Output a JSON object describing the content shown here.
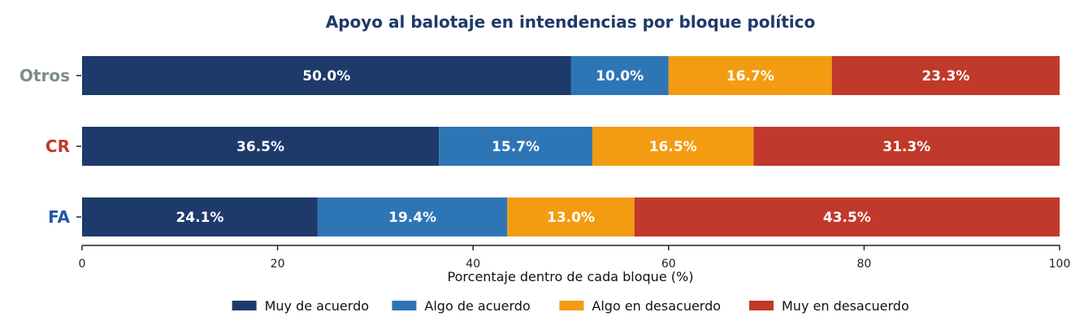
{
  "chart_data": {
    "type": "bar",
    "orientation": "horizontal",
    "stacked": true,
    "title": "Apoyo al balotaje en intendencias por bloque político",
    "xlabel": "Porcentaje dentro de cada bloque (%)",
    "ylabel": "",
    "xlim": [
      0,
      100
    ],
    "xticks": [
      0,
      20,
      40,
      60,
      80,
      100
    ],
    "grid": false,
    "legend_position": "bottom-center",
    "categories": [
      "Otros",
      "CR",
      "FA"
    ],
    "category_colors": {
      "Otros": "#7f8c8d",
      "CR": "#c0392b",
      "FA": "#1f57a8"
    },
    "series": [
      {
        "name": "Muy de acuerdo",
        "color": "#1e3a6b",
        "values": [
          50.0,
          36.5,
          24.1
        ],
        "labels": [
          "50.0%",
          "36.5%",
          "24.1%"
        ]
      },
      {
        "name": "Algo de acuerdo",
        "color": "#2e75b6",
        "values": [
          10.0,
          15.7,
          19.4
        ],
        "labels": [
          "10.0%",
          "15.7%",
          "19.4%"
        ]
      },
      {
        "name": "Algo en desacuerdo",
        "color": "#f39c12",
        "values": [
          16.7,
          16.5,
          13.0
        ],
        "labels": [
          "16.7%",
          "16.5%",
          "13.0%"
        ]
      },
      {
        "name": "Muy en desacuerdo",
        "color": "#c0392b",
        "values": [
          23.3,
          31.3,
          43.5
        ],
        "labels": [
          "23.3%",
          "31.3%",
          "43.5%"
        ]
      }
    ]
  }
}
